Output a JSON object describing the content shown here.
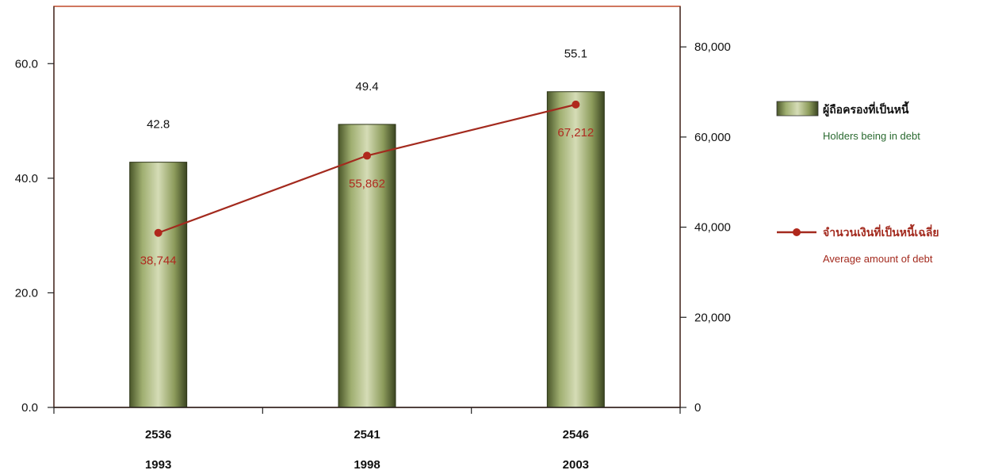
{
  "chart_data": {
    "type": "bar",
    "categories": [
      {
        "thai_year": "2536",
        "year": "1993"
      },
      {
        "thai_year": "2541",
        "year": "1998"
      },
      {
        "thai_year": "2546",
        "year": "2003"
      }
    ],
    "series": [
      {
        "name": "ผู้ถือครองที่เป็นหนี้",
        "name_en": "Holders being in debt",
        "type": "bar",
        "axis": "left",
        "values": [
          42.8,
          49.4,
          55.1
        ],
        "labels": [
          "42.8",
          "49.4",
          "55.1"
        ]
      },
      {
        "name": "จำนวนเงินที่เป็นหนี้เฉลี่ย",
        "name_en": "Average amount of debt",
        "type": "line",
        "axis": "right",
        "values": [
          38744,
          55862,
          67212
        ],
        "labels": [
          "38,744",
          "55,862",
          "67,212"
        ]
      }
    ],
    "y_left": {
      "ylim": [
        0,
        70
      ],
      "ticks": [
        0,
        20,
        40,
        60
      ],
      "tick_labels": [
        "0.0",
        "20.0",
        "40.0",
        "60.0"
      ]
    },
    "y_right": {
      "ylim": [
        0,
        89000
      ],
      "ticks": [
        0,
        20000,
        40000,
        60000,
        80000
      ],
      "tick_labels": [
        "0",
        "20,000",
        "40,000",
        "60,000",
        "80,000"
      ]
    },
    "legend_position": "right",
    "grid": false,
    "colors": {
      "bar": "#8a9a5a",
      "bar_dark": "#3f4a22",
      "line": "#a32a1e",
      "marker": "#b0281c",
      "plot_border": "#c04a2a",
      "axis": "#222222"
    }
  }
}
